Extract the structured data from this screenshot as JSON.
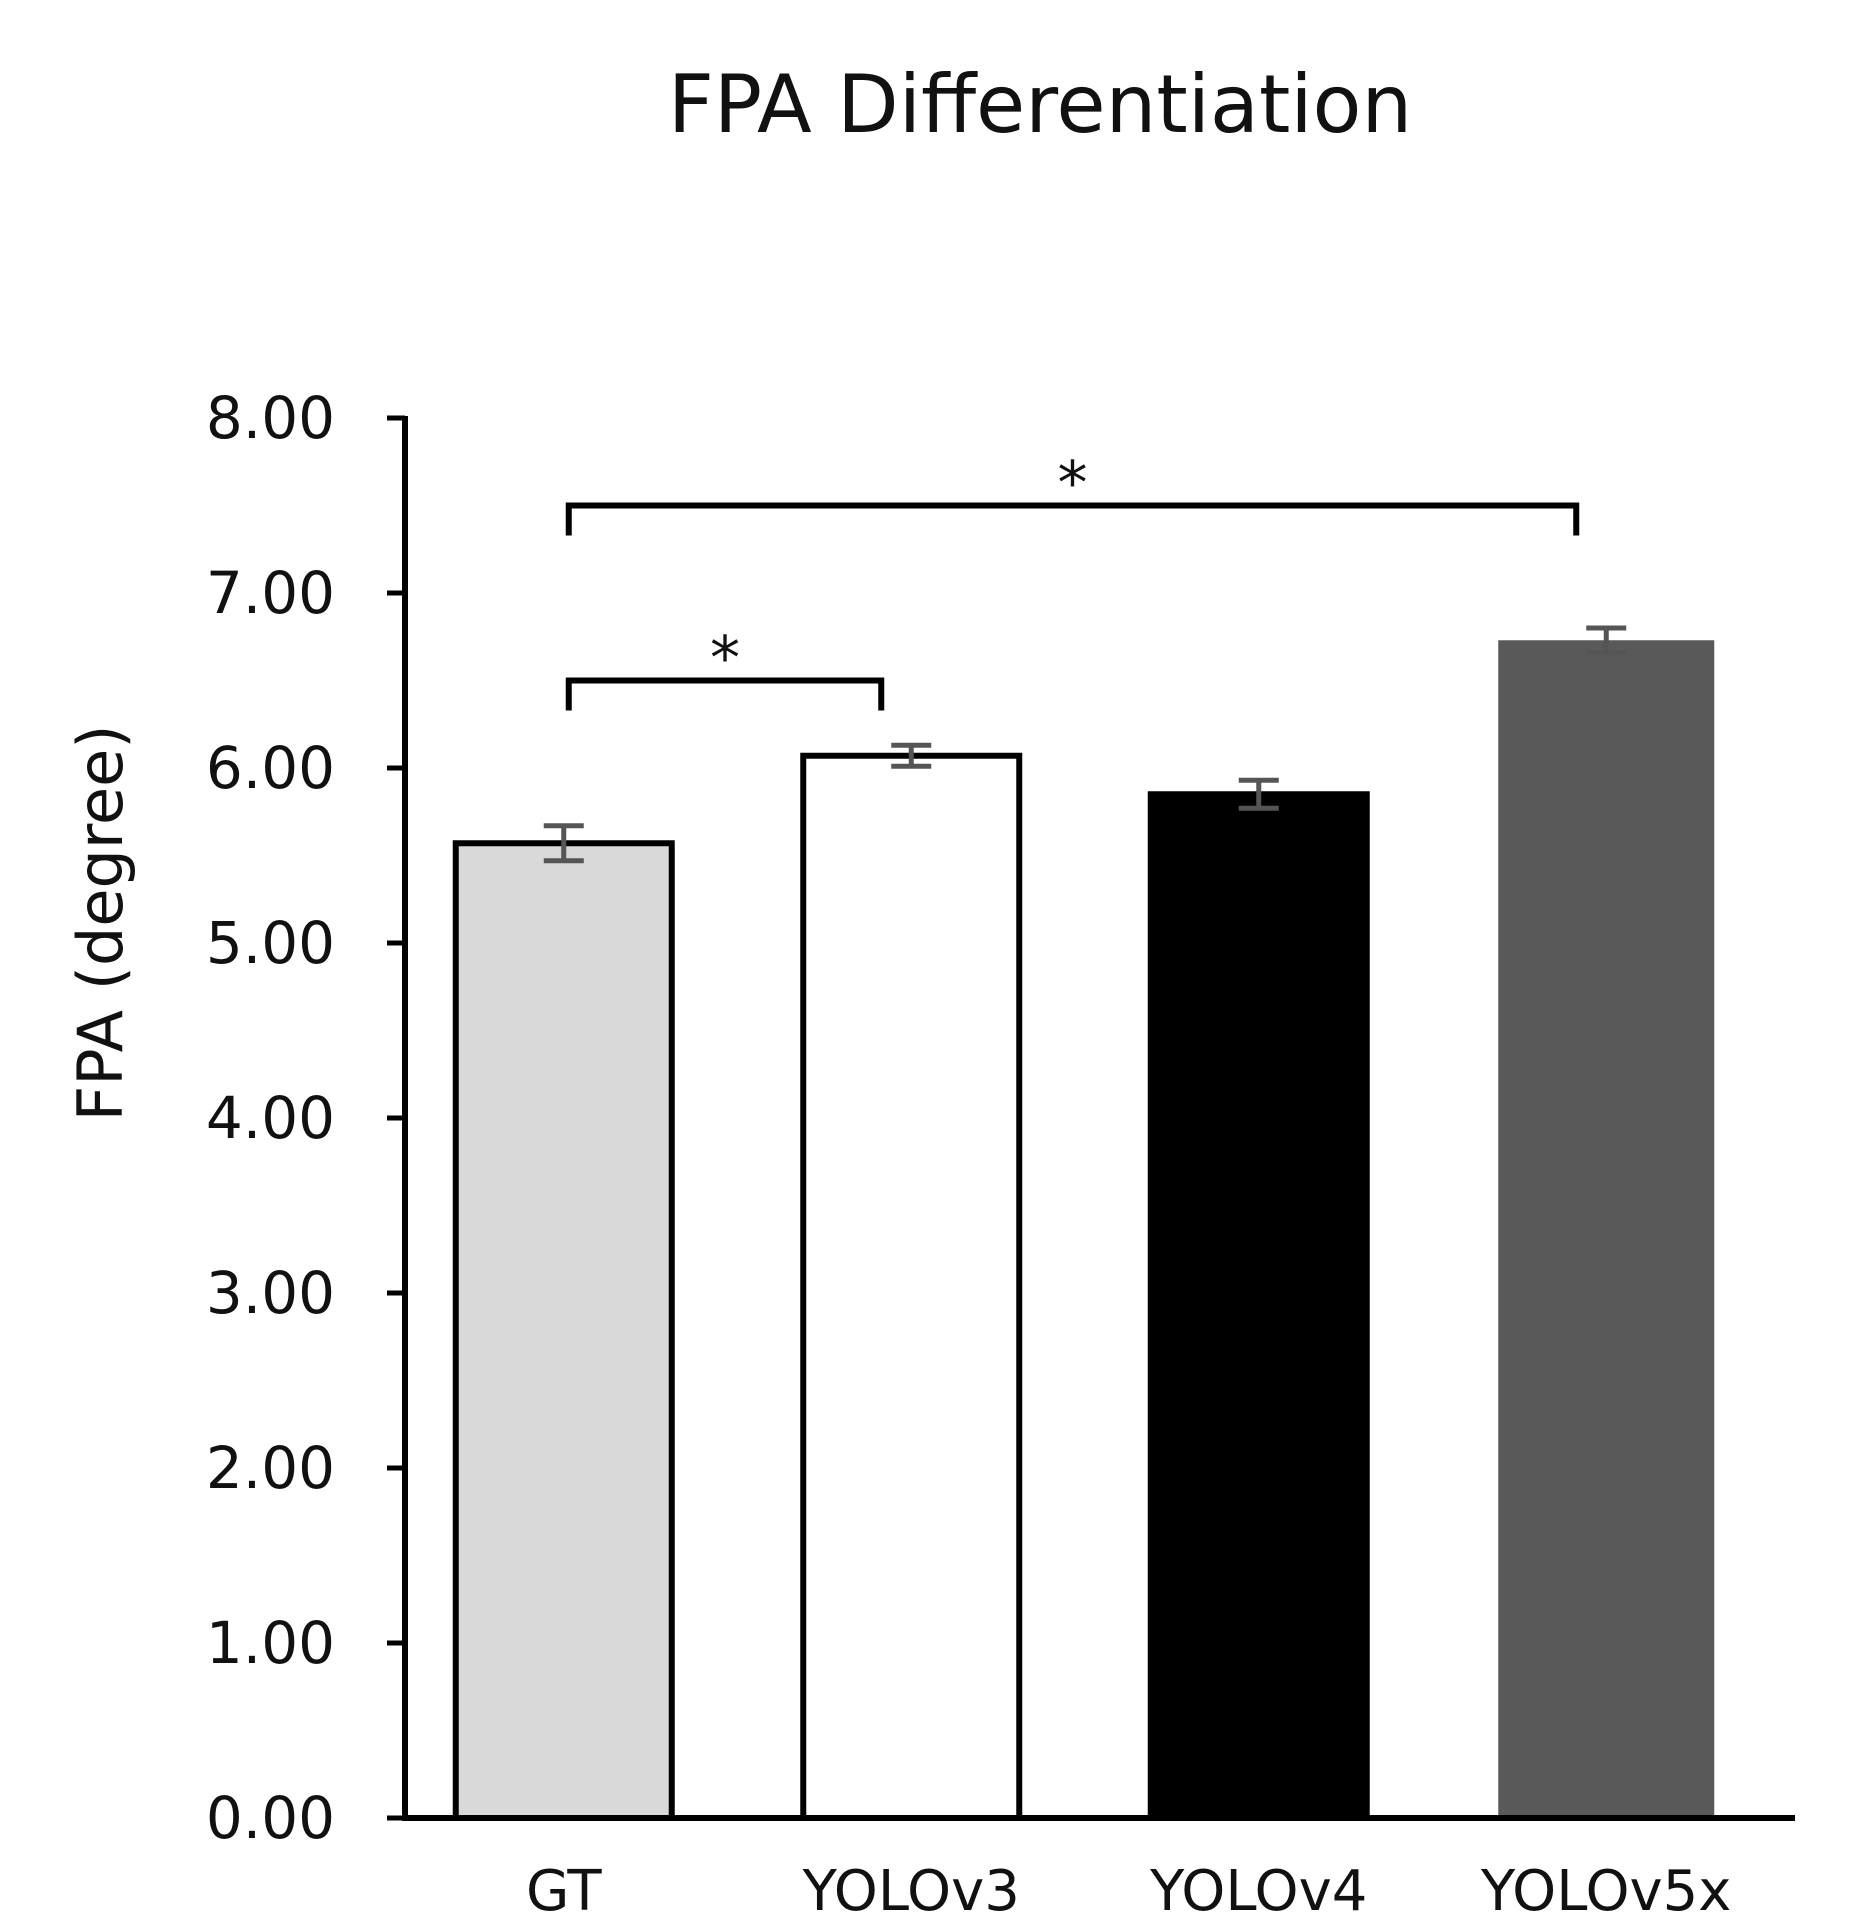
{
  "chart_data": {
    "type": "bar",
    "title": "FPA Differentiation",
    "xlabel": "",
    "ylabel": "FPA (degree)",
    "ylim": [
      0,
      8
    ],
    "yticks": [
      "0.00",
      "1.00",
      "2.00",
      "3.00",
      "4.00",
      "5.00",
      "6.00",
      "7.00",
      "8.00"
    ],
    "categories": [
      "GT",
      "YOLOv3",
      "YOLOv4",
      "YOLOv5x"
    ],
    "values": [
      5.57,
      6.07,
      5.85,
      6.73
    ],
    "errors": [
      0.1,
      0.06,
      0.08,
      0.07
    ],
    "colors": [
      "#d9d9d9",
      "#ffffff",
      "#000000",
      "#595959"
    ],
    "significance": [
      {
        "from": 0,
        "to": 1,
        "label": "*",
        "level": 6.5
      },
      {
        "from": 0,
        "to": 3,
        "label": "*",
        "level": 7.5
      }
    ]
  }
}
